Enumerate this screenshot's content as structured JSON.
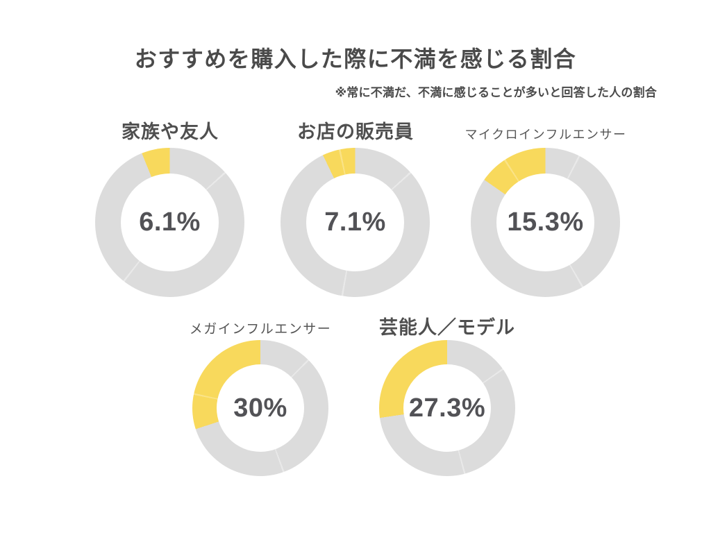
{
  "title": "おすすめを購入した際に不満を感じる割合",
  "subtitle": "※常に不満だ、不満に感じることが多いと回答した人の割合",
  "colors": {
    "background": "#ffffff",
    "accent_yellow": "#f8d95c",
    "ring_gray": "#dcdcdc",
    "hairline_yellow": "#fae387",
    "hairline_gray": "#e9e9e9",
    "heading_text": "#4a4a4a",
    "value_text": "#525256"
  },
  "chart_data": {
    "type": "pie",
    "subtype": "donut-small-multiples",
    "title": "おすすめを購入した際に不満を感じる割合",
    "note": "※常に不満だ、不満に感じることが多いと回答した人の割合",
    "unit": "%",
    "categories": [
      "家族や友人",
      "お店の販売員",
      "マイクロインフルエンサー",
      "メガインフルエンサー",
      "芸能人／モデル"
    ],
    "values": [
      6.1,
      7.1,
      15.3,
      30,
      27.3
    ],
    "value_labels": [
      "6.1%",
      "7.1%",
      "15.3%",
      "30%",
      "27.3%"
    ],
    "highlight_direction": "counterclockwise-from-12-o-clock",
    "remainder_color_role": "ring_gray",
    "highlight_color_role": "accent_yellow",
    "faint_segment_divider_angles_deg": [
      [
        48,
        218
      ],
      [
        48,
        190,
        348
      ],
      [
        27,
        150,
        327
      ],
      [
        45,
        160,
        282
      ],
      [
        55,
        165
      ]
    ],
    "legend": "none",
    "layout": "3 donuts top row, 2 donuts bottom row"
  }
}
